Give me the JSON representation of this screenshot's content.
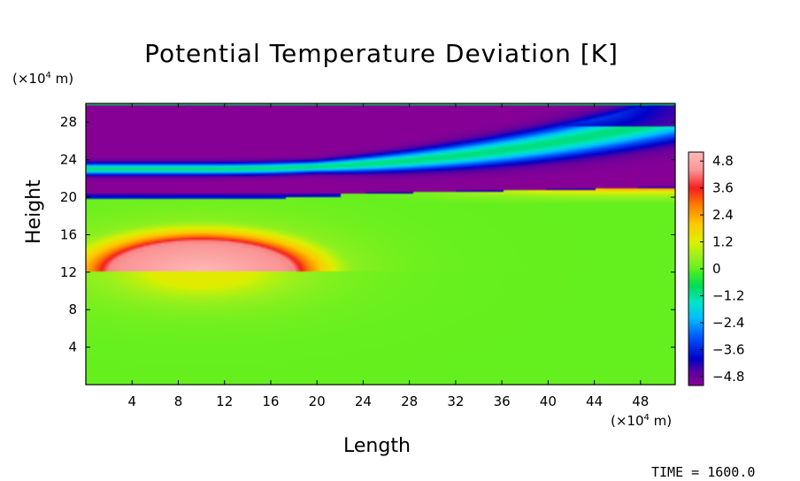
{
  "chart_data": {
    "type": "heatmap",
    "title": "Potential Temperature Deviation [K]",
    "xlabel": "Length",
    "ylabel": "Height",
    "x_unit": "(×10⁴ m)",
    "y_unit": "(×10⁴ m)",
    "x_unit_base": "(×10",
    "x_unit_exp": "4",
    "x_unit_tail": " m)",
    "xlim": [
      0,
      51
    ],
    "ylim": [
      0,
      30
    ],
    "xticks": [
      4,
      8,
      12,
      16,
      20,
      24,
      28,
      32,
      36,
      40,
      44,
      48
    ],
    "yticks": [
      4,
      8,
      12,
      16,
      20,
      24,
      28
    ],
    "colorbar": {
      "min": -5.2,
      "max": 5.2,
      "ticks": [
        "4.8",
        "3.6",
        "2.4",
        "1.2",
        "0",
        "−1.2",
        "−2.4",
        "−3.6",
        "−4.8"
      ],
      "tick_values": [
        4.8,
        3.6,
        2.4,
        1.2,
        0,
        -1.2,
        -2.4,
        -3.6,
        -4.8
      ]
    },
    "features": [
      {
        "kind": "warm-bubble",
        "center_x": 10,
        "base_y": 12,
        "half_width": 8,
        "height": 3.3,
        "peak": 5.2
      },
      {
        "kind": "cold-layer",
        "y_from": 19.9,
        "y_to": 29.8,
        "value": -5.2
      },
      {
        "kind": "warm-tongue",
        "x_from": 22,
        "x_to": 51,
        "y_at_x_end": 21.2,
        "peak": 3.4
      }
    ]
  },
  "time_label": "TIME",
  "time_eq": "=",
  "time_value": "1600.0"
}
